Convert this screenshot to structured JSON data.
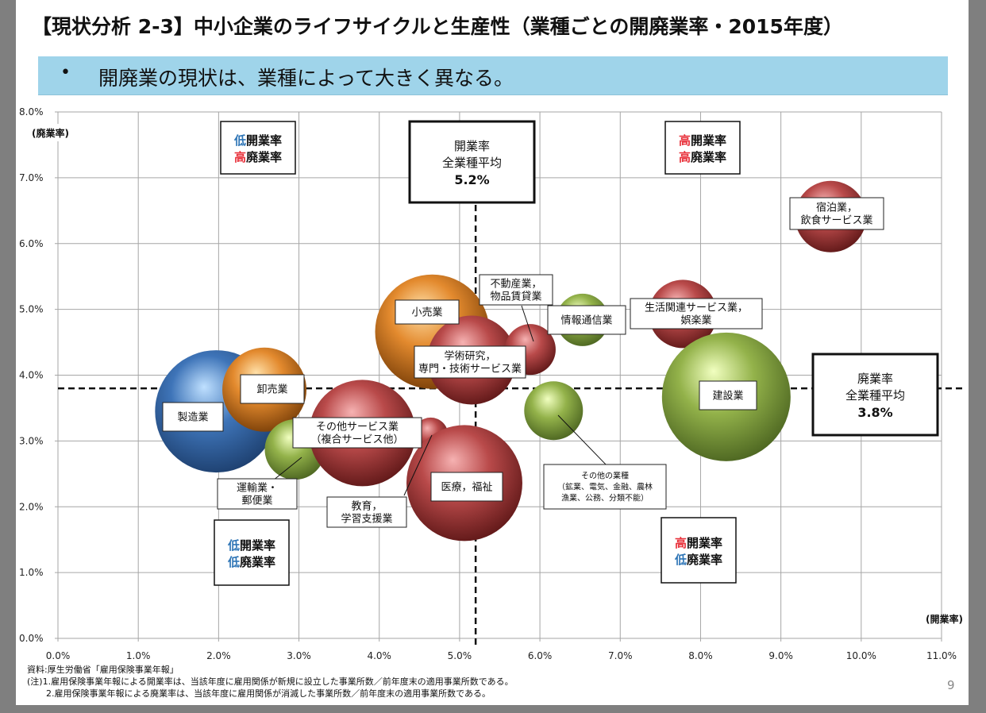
{
  "slide": {
    "title": "【現状分析 2-3】中小企業のライフサイクルと生産性（業種ごとの開廃業率・2015年度）",
    "bullet": "•",
    "banner_text": "開廃業の現状は、業種によって大きく異なる。",
    "source": "資料:厚生労働省「雇用保険事業年報」",
    "note1": "(注)1.雇用保険事業年報による開業率は、当該年度に雇用関係が新規に設立した事業所数／前年度末の適用事業所数である。",
    "note2": "2.雇用保険事業年報による廃業率は、当該年度に雇用関係が消滅した事業所数／前年度末の適用事業所数である。",
    "page_number": "9"
  },
  "colors": {
    "banner": "#9fd4ea",
    "blue": "#3e74b8",
    "orange": "#e38a2e",
    "green": "#93b24a",
    "red": "#b94a4a",
    "low_text": "#2e75b6",
    "high_text": "#e8303a"
  },
  "chart_data": {
    "type": "bubble",
    "xlabel": "(開業率)",
    "ylabel": "(廃業率)",
    "xlim": [
      0,
      11
    ],
    "ylim": [
      0,
      8
    ],
    "x_ticks": [
      "0.0%",
      "1.0%",
      "2.0%",
      "3.0%",
      "4.0%",
      "5.0%",
      "6.0%",
      "7.0%",
      "8.0%",
      "9.0%",
      "10.0%",
      "11.0%"
    ],
    "y_ticks": [
      "0.0%",
      "1.0%",
      "2.0%",
      "3.0%",
      "4.0%",
      "5.0%",
      "6.0%",
      "7.0%",
      "8.0%"
    ],
    "grid": true,
    "avg_open_rate": 5.2,
    "avg_close_rate": 3.8,
    "avg_open_box": {
      "line1": "開業率",
      "line2": "全業種平均",
      "value": "5.2%"
    },
    "avg_close_box": {
      "line1": "廃業率",
      "line2": "全業種平均",
      "value": "3.8%"
    },
    "quadrants": [
      {
        "pos": "top-left",
        "p1": "低",
        "r1": "開業率",
        "p2": "高",
        "r2": "廃業率",
        "c1": "low",
        "c2": "high"
      },
      {
        "pos": "top-right",
        "p1": "高",
        "r1": "開業率",
        "p2": "高",
        "r2": "廃業率",
        "c1": "high",
        "c2": "high"
      },
      {
        "pos": "bottom-left",
        "p1": "低",
        "r1": "開業率",
        "p2": "低",
        "r2": "廃業率",
        "c1": "low",
        "c2": "low"
      },
      {
        "pos": "bottom-right",
        "p1": "高",
        "r1": "開業率",
        "p2": "低",
        "r2": "廃業率",
        "c1": "high",
        "c2": "low"
      }
    ],
    "series": [
      {
        "name": "製造業",
        "lines": [
          "製造業"
        ],
        "x": 1.97,
        "y": 3.45,
        "size": 77,
        "color": "blue"
      },
      {
        "name": "卸売業",
        "lines": [
          "卸売業"
        ],
        "x": 2.57,
        "y": 3.78,
        "size": 53,
        "color": "orange"
      },
      {
        "name": "運輸業・郵便業",
        "lines": [
          "運輸業・",
          "郵便業"
        ],
        "x": 2.95,
        "y": 2.87,
        "size": 38,
        "color": "green"
      },
      {
        "name": "その他サービス業（複合サービス他）",
        "lines": [
          "その他サービス業",
          "（複合サービス他）"
        ],
        "x": 3.79,
        "y": 3.12,
        "size": 67,
        "color": "red"
      },
      {
        "name": "小売業",
        "lines": [
          "小売業"
        ],
        "x": 4.66,
        "y": 4.66,
        "size": 72,
        "color": "orange"
      },
      {
        "name": "教育，学習支援業",
        "lines": [
          "教育，",
          "学習支援業"
        ],
        "x": 4.64,
        "y": 3.09,
        "size": 22,
        "color": "red"
      },
      {
        "name": "学術研究，専門・技術サービス業",
        "lines": [
          "学術研究，",
          "専門・技術サービス業"
        ],
        "x": 5.15,
        "y": 4.23,
        "size": 56,
        "color": "red"
      },
      {
        "name": "医療，福祉",
        "lines": [
          "医療，福祉"
        ],
        "x": 5.06,
        "y": 2.36,
        "size": 73,
        "color": "red"
      },
      {
        "name": "不動産業，物品賃貸業",
        "lines": [
          "不動産業，",
          "物品賃貸業"
        ],
        "x": 5.88,
        "y": 4.39,
        "size": 32,
        "color": "red"
      },
      {
        "name": "その他の業種",
        "lines": [
          "その他の業種",
          "（鉱業、電気、金融、農林",
          "漁業、公務、分類不能）"
        ],
        "x": 6.17,
        "y": 3.46,
        "size": 37,
        "color": "green"
      },
      {
        "name": "情報通信業",
        "lines": [
          "情報通信業"
        ],
        "x": 6.53,
        "y": 4.84,
        "size": 33,
        "color": "green"
      },
      {
        "name": "生活関連サービス業，娯楽業",
        "lines": [
          "生活関連サービス業，",
          "娯楽業"
        ],
        "x": 7.78,
        "y": 4.93,
        "size": 43,
        "color": "red"
      },
      {
        "name": "建設業",
        "lines": [
          "建設業"
        ],
        "x": 8.32,
        "y": 3.67,
        "size": 81,
        "color": "green"
      },
      {
        "name": "宿泊業，飲食サービス業",
        "lines": [
          "宿泊業，",
          "飲食サービス業"
        ],
        "x": 9.62,
        "y": 6.41,
        "size": 45,
        "color": "red"
      }
    ]
  }
}
